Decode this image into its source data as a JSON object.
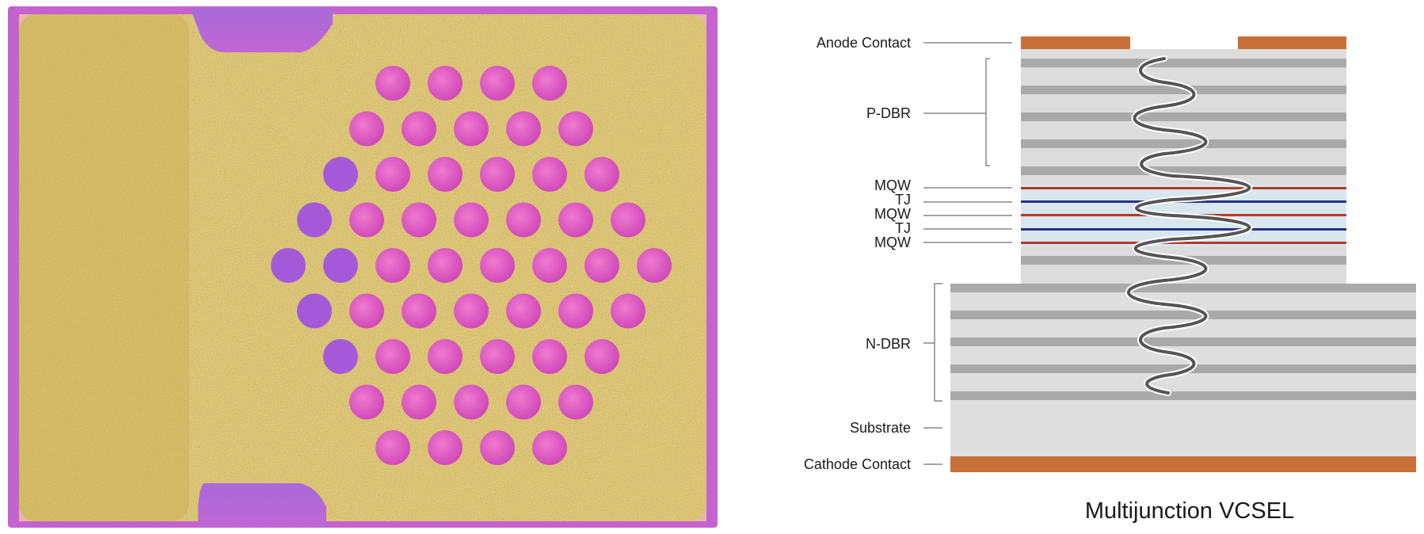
{
  "figure": {
    "photo_caption": "",
    "diagram_title": "Multijunction VCSEL",
    "colors": {
      "contact": "#c8703a",
      "dbr_light": "#dcdcdc",
      "dbr_dark": "#a9a9a9",
      "substrate": "#dedede",
      "mqw": "#b23a2a",
      "tj": "#2a2f86",
      "active_bg": "#d8e6ee",
      "wave": "#555555",
      "leader": "#888888"
    },
    "labels": {
      "anode_contact": "Anode Contact",
      "p_dbr": "P-DBR",
      "mqw_1": "MQW",
      "tj_1": "TJ",
      "mqw_2": "MQW",
      "tj_2": "TJ",
      "mqw_3": "MQW",
      "n_dbr": "N-DBR",
      "substrate": "Substrate",
      "cathode_contact": "Cathode Contact"
    },
    "emitter_array": {
      "row_counts": [
        4,
        5,
        6,
        7,
        8,
        7,
        6,
        5,
        4
      ],
      "emitter_color": "#e060c0",
      "die_color": "#b08a3a",
      "frame_color": "#c75fd0"
    }
  }
}
